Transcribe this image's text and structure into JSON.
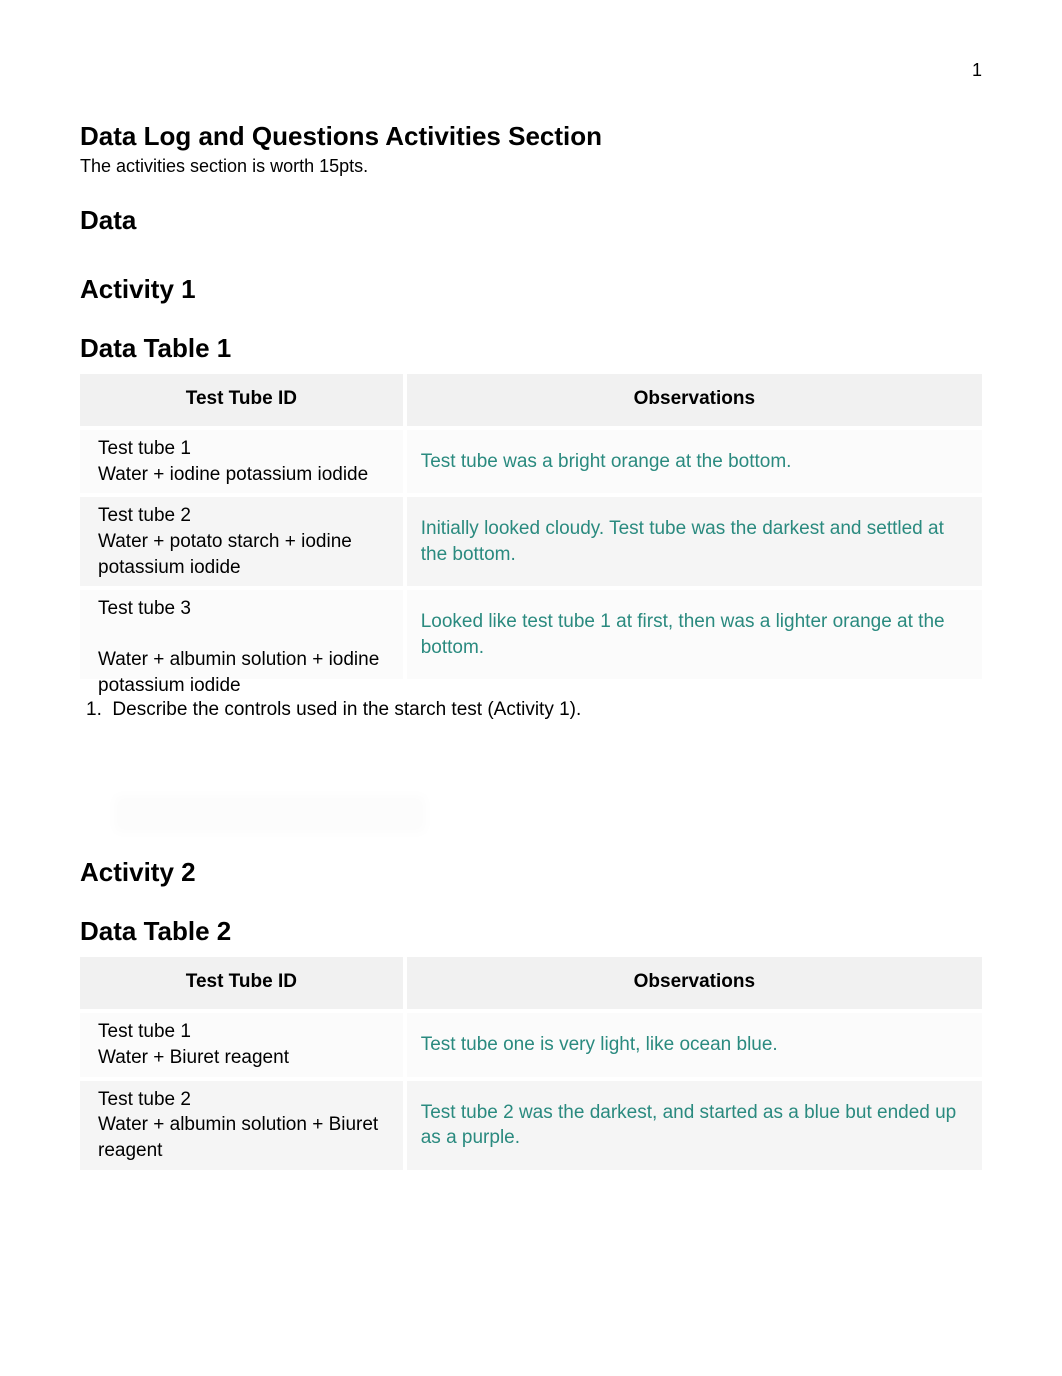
{
  "page_number": "1",
  "section_title": "Data Log and Questions Activities Section",
  "section_subtitle": "The activities section is worth 15pts.",
  "heading_data": "Data",
  "heading_activity1": "Activity 1",
  "heading_table1": "Data Table 1",
  "heading_activity2": "Activity 2",
  "heading_table2": "Data Table 2",
  "col_header_id": "Test Tube ID",
  "col_header_obs": "Observations",
  "table1": {
    "header_bg": "#f1f1f1",
    "rows": [
      {
        "id": "Test tube 1\nWater + iodine potassium iodide",
        "obs": "Test tube was a bright orange at the bottom.",
        "bg": "#fbfbfb"
      },
      {
        "id": "Test tube 2\nWater + potato starch + iodine potassium iodide",
        "obs": "Initially looked cloudy. Test tube was the darkest and settled at the bottom.",
        "bg": "#f5f5f5"
      },
      {
        "id": "Test tube 3\nWater + albumin solution + iodine potassium iodide",
        "obs": "Looked like test tube 1 at first, then was a lighter orange at the bottom.",
        "bg": "#fbfbfb"
      }
    ]
  },
  "obs_color": "#2a8a7f",
  "question1_number": "1.",
  "question1_text": "Describe the controls used in the starch test (Activity 1).",
  "table2": {
    "header_bg": "#f1f1f1",
    "rows": [
      {
        "id": "Test tube 1\nWater + Biuret reagent",
        "obs": "Test tube one is very light, like ocean blue.",
        "bg": "#fbfbfb"
      },
      {
        "id": "Test tube 2\nWater + albumin solution + Biuret reagent",
        "obs": "Test tube 2 was the darkest, and started as a blue but ended up as a purple.",
        "bg": "#f5f5f5"
      }
    ]
  }
}
